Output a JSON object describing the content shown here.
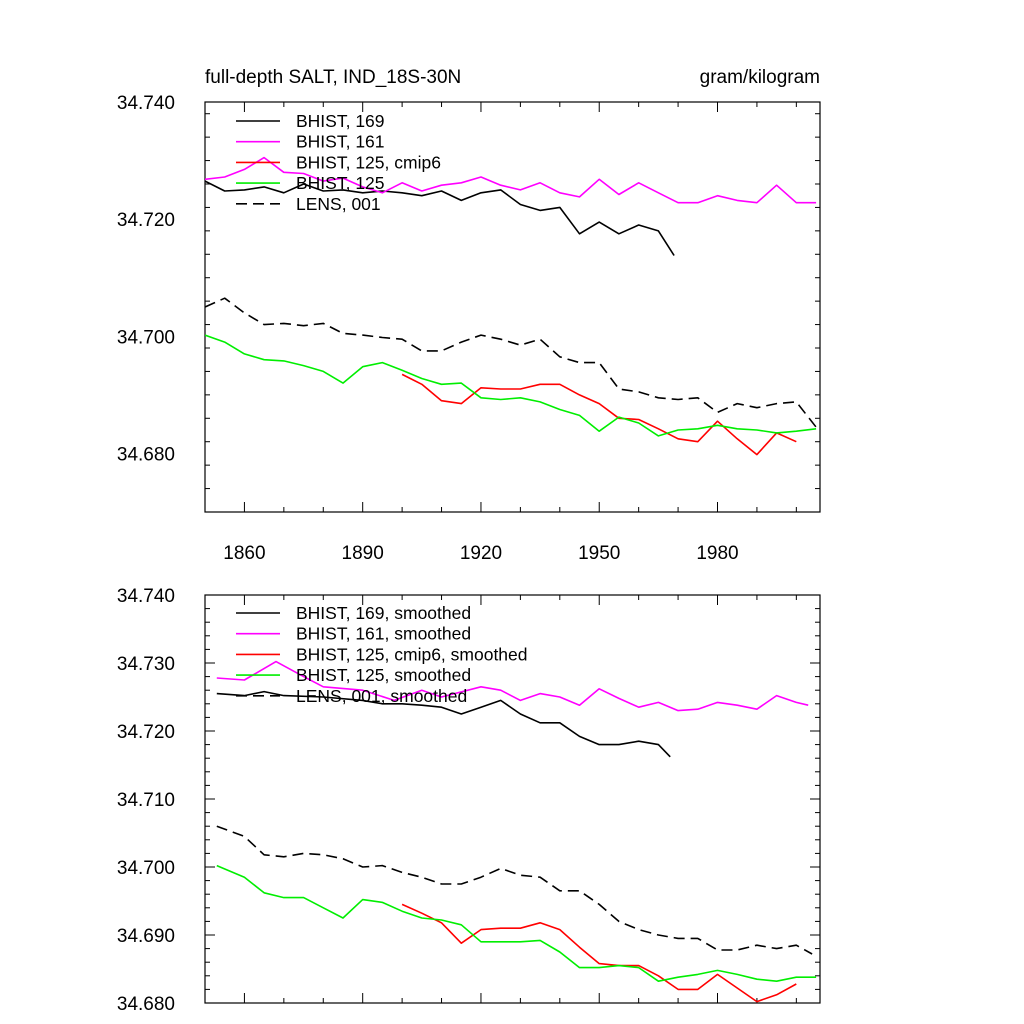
{
  "figure": {
    "title_left": "full-depth SALT, IND_18S-30N",
    "title_right": "gram/kilogram"
  },
  "colors": {
    "BHIST_169": "#000000",
    "BHIST_161": "#ff00ff",
    "BHIST_125_cmip6": "#ff0000",
    "BHIST_125": "#00ee00",
    "LENS_001": "#000000"
  },
  "chart_data": [
    {
      "type": "line",
      "title": "full-depth SALT, IND_18S-30N",
      "units": "gram/kilogram",
      "xlabel": "",
      "ylabel": "",
      "xlim": [
        1850,
        2006
      ],
      "ylim": [
        34.67,
        34.74
      ],
      "xticks": [
        1860,
        1890,
        1920,
        1950,
        1980
      ],
      "xtick_labels": [
        "1860",
        "1890",
        "1920",
        "1950",
        "1980"
      ],
      "yticks": [
        34.68,
        34.7,
        34.72,
        34.74
      ],
      "ytick_labels": [
        "34.680",
        "34.700",
        "34.720",
        "34.740"
      ],
      "legend_position": "top-left",
      "series": [
        {
          "name": "BHIST, 169",
          "key": "BHIST_169",
          "dash": "solid",
          "x": [
            1850,
            1855,
            1860,
            1865,
            1870,
            1875,
            1880,
            1885,
            1890,
            1895,
            1900,
            1905,
            1910,
            1915,
            1920,
            1925,
            1930,
            1935,
            1940,
            1945,
            1950,
            1955,
            1960,
            1965,
            1969
          ],
          "y": [
            34.7265,
            34.7248,
            34.725,
            34.7255,
            34.7245,
            34.726,
            34.7248,
            34.725,
            34.7245,
            34.7248,
            34.7245,
            34.724,
            34.7248,
            34.7232,
            34.7245,
            34.725,
            34.7225,
            34.7215,
            34.722,
            34.7175,
            34.7195,
            34.7175,
            34.719,
            34.718,
            34.7138
          ]
        },
        {
          "name": "BHIST, 161",
          "key": "BHIST_161",
          "dash": "solid",
          "x": [
            1850,
            1855,
            1860,
            1865,
            1870,
            1875,
            1880,
            1885,
            1890,
            1895,
            1900,
            1905,
            1910,
            1915,
            1920,
            1925,
            1930,
            1935,
            1940,
            1945,
            1950,
            1955,
            1960,
            1965,
            1970,
            1975,
            1980,
            1985,
            1990,
            1995,
            2000,
            2005
          ],
          "y": [
            34.7268,
            34.7272,
            34.7285,
            34.7305,
            34.728,
            34.7278,
            34.7265,
            34.727,
            34.7255,
            34.7245,
            34.7262,
            34.7248,
            34.7258,
            34.7262,
            34.7272,
            34.7258,
            34.725,
            34.7262,
            34.7245,
            34.7238,
            34.7268,
            34.7242,
            34.7262,
            34.7245,
            34.7228,
            34.7228,
            34.724,
            34.7232,
            34.7228,
            34.7258,
            34.7228,
            34.7228
          ]
        },
        {
          "name": "BHIST, 125, cmip6",
          "key": "BHIST_125_cmip6",
          "dash": "solid",
          "x": [
            1900,
            1905,
            1910,
            1915,
            1920,
            1925,
            1930,
            1935,
            1940,
            1945,
            1950,
            1955,
            1960,
            1965,
            1970,
            1975,
            1980,
            1985,
            1990,
            1995,
            2000
          ],
          "y": [
            34.6935,
            34.6918,
            34.689,
            34.6885,
            34.6912,
            34.691,
            34.691,
            34.6918,
            34.6918,
            34.69,
            34.6885,
            34.686,
            34.6858,
            34.6842,
            34.6825,
            34.682,
            34.6855,
            34.6825,
            34.6798,
            34.6835,
            34.682
          ]
        },
        {
          "name": "BHIST, 125",
          "key": "BHIST_125",
          "dash": "solid",
          "x": [
            1850,
            1855,
            1860,
            1865,
            1870,
            1875,
            1880,
            1885,
            1890,
            1895,
            1900,
            1905,
            1910,
            1915,
            1920,
            1925,
            1930,
            1935,
            1940,
            1945,
            1950,
            1955,
            1960,
            1965,
            1970,
            1975,
            1980,
            1985,
            1990,
            1995,
            2000,
            2005
          ],
          "y": [
            34.7002,
            34.699,
            34.697,
            34.696,
            34.6958,
            34.695,
            34.694,
            34.692,
            34.6948,
            34.6955,
            34.6942,
            34.6928,
            34.6918,
            34.692,
            34.6895,
            34.6892,
            34.6895,
            34.6888,
            34.6875,
            34.6865,
            34.6838,
            34.6862,
            34.6852,
            34.683,
            34.684,
            34.6842,
            34.6848,
            34.6842,
            34.684,
            34.6835,
            34.6838,
            34.6842
          ]
        },
        {
          "name": "LENS, 001",
          "key": "LENS_001",
          "dash": "dashed",
          "x": [
            1850,
            1855,
            1860,
            1865,
            1870,
            1875,
            1880,
            1885,
            1890,
            1895,
            1900,
            1905,
            1910,
            1915,
            1920,
            1925,
            1930,
            1935,
            1940,
            1945,
            1950,
            1955,
            1960,
            1965,
            1970,
            1975,
            1980,
            1985,
            1990,
            1995,
            2000,
            2005
          ],
          "y": [
            34.705,
            34.7065,
            34.704,
            34.702,
            34.7022,
            34.7018,
            34.7022,
            34.7005,
            34.7002,
            34.6998,
            34.6995,
            34.6975,
            34.6975,
            34.699,
            34.7002,
            34.6995,
            34.6985,
            34.6995,
            34.6965,
            34.6955,
            34.6955,
            34.691,
            34.6905,
            34.6895,
            34.6892,
            34.6895,
            34.687,
            34.6885,
            34.6878,
            34.6885,
            34.6888,
            34.6845
          ]
        }
      ]
    },
    {
      "type": "line",
      "title": "",
      "xlabel": "",
      "ylabel": "",
      "xlim": [
        1850,
        2006
      ],
      "ylim": [
        34.68,
        34.74
      ],
      "xticks": [
        1860,
        1890,
        1920,
        1950,
        1980
      ],
      "yticks": [
        34.68,
        34.69,
        34.7,
        34.71,
        34.72,
        34.73,
        34.74
      ],
      "ytick_labels": [
        "34.680",
        "34.690",
        "34.700",
        "34.710",
        "34.720",
        "34.730",
        "34.740"
      ],
      "legend_position": "top-left",
      "series": [
        {
          "name": "BHIST, 169, smoothed",
          "key": "BHIST_169",
          "dash": "solid",
          "x": [
            1853,
            1860,
            1865,
            1870,
            1880,
            1890,
            1895,
            1900,
            1905,
            1910,
            1915,
            1920,
            1925,
            1930,
            1935,
            1940,
            1945,
            1950,
            1955,
            1960,
            1965,
            1968
          ],
          "y": [
            34.7255,
            34.7252,
            34.7258,
            34.7252,
            34.725,
            34.7245,
            34.724,
            34.724,
            34.7238,
            34.7235,
            34.7225,
            34.7235,
            34.7245,
            34.7225,
            34.7212,
            34.7212,
            34.7192,
            34.718,
            34.718,
            34.7185,
            34.718,
            34.7162
          ]
        },
        {
          "name": "BHIST, 161, smoothed",
          "key": "BHIST_161",
          "dash": "solid",
          "x": [
            1853,
            1860,
            1868,
            1875,
            1880,
            1890,
            1898,
            1905,
            1910,
            1920,
            1925,
            1930,
            1935,
            1940,
            1945,
            1950,
            1955,
            1960,
            1965,
            1970,
            1975,
            1980,
            1985,
            1990,
            1995,
            2000,
            2003
          ],
          "y": [
            34.7278,
            34.7275,
            34.7302,
            34.728,
            34.7265,
            34.726,
            34.7245,
            34.726,
            34.725,
            34.7265,
            34.726,
            34.7245,
            34.7255,
            34.725,
            34.7238,
            34.7262,
            34.7248,
            34.7235,
            34.7242,
            34.723,
            34.7232,
            34.7242,
            34.7238,
            34.7232,
            34.7252,
            34.7242,
            34.7238
          ]
        },
        {
          "name": "BHIST, 125, cmip6, smoothed",
          "key": "BHIST_125_cmip6",
          "dash": "solid",
          "x": [
            1900,
            1905,
            1910,
            1915,
            1920,
            1925,
            1930,
            1935,
            1940,
            1945,
            1950,
            1955,
            1960,
            1965,
            1970,
            1975,
            1980,
            1985,
            1990,
            1995,
            2000
          ],
          "y": [
            34.6945,
            34.6932,
            34.6918,
            34.6888,
            34.6908,
            34.691,
            34.691,
            34.6918,
            34.6908,
            34.6882,
            34.6858,
            34.6855,
            34.6855,
            34.684,
            34.682,
            34.682,
            34.6842,
            34.6822,
            34.6802,
            34.6812,
            34.6828
          ]
        },
        {
          "name": "BHIST, 125, smoothed",
          "key": "BHIST_125",
          "dash": "solid",
          "x": [
            1853,
            1860,
            1865,
            1870,
            1875,
            1880,
            1885,
            1890,
            1895,
            1900,
            1905,
            1910,
            1915,
            1920,
            1925,
            1930,
            1935,
            1940,
            1945,
            1950,
            1955,
            1960,
            1965,
            1970,
            1975,
            1980,
            1985,
            1990,
            1995,
            2000,
            2005
          ],
          "y": [
            34.7002,
            34.6985,
            34.6962,
            34.6955,
            34.6955,
            34.694,
            34.6925,
            34.6952,
            34.6948,
            34.6935,
            34.6925,
            34.6922,
            34.6915,
            34.689,
            34.689,
            34.689,
            34.6892,
            34.6875,
            34.6852,
            34.6852,
            34.6855,
            34.6852,
            34.6832,
            34.6838,
            34.6842,
            34.6848,
            34.6842,
            34.6835,
            34.6832,
            34.6838,
            34.6838
          ]
        },
        {
          "name": "LENS, 001, smoothed",
          "key": "LENS_001",
          "dash": "dashed",
          "x": [
            1853,
            1860,
            1865,
            1870,
            1875,
            1880,
            1885,
            1890,
            1895,
            1900,
            1905,
            1910,
            1915,
            1920,
            1925,
            1930,
            1935,
            1940,
            1945,
            1950,
            1955,
            1960,
            1965,
            1970,
            1975,
            1980,
            1985,
            1990,
            1995,
            2000,
            2004
          ],
          "y": [
            34.706,
            34.7045,
            34.7018,
            34.7015,
            34.702,
            34.7018,
            34.7012,
            34.7,
            34.7002,
            34.6992,
            34.6985,
            34.6975,
            34.6975,
            34.6985,
            34.6998,
            34.6988,
            34.6985,
            34.6965,
            34.6965,
            34.6945,
            34.692,
            34.6908,
            34.69,
            34.6895,
            34.6895,
            34.6878,
            34.6878,
            34.6885,
            34.688,
            34.6885,
            34.6872
          ]
        }
      ]
    }
  ]
}
